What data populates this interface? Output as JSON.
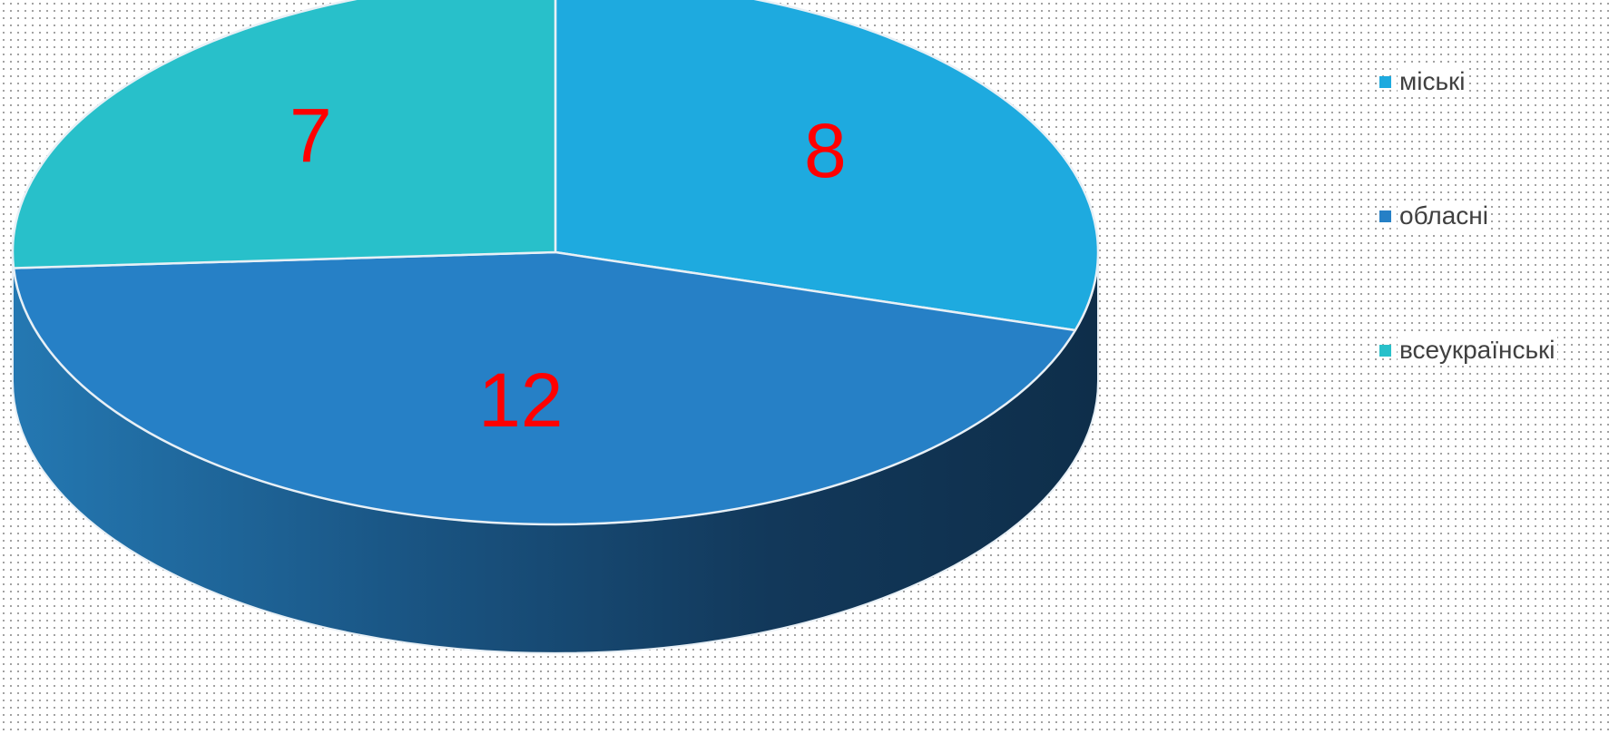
{
  "chart_data": {
    "type": "pie",
    "style": "3d",
    "categories": [
      "міські",
      "обласні",
      "всеукраїнські"
    ],
    "values": [
      8,
      12,
      7
    ],
    "colors": [
      "#1EAADF",
      "#2680C6",
      "#28C0CA"
    ],
    "side_color": "#16466F",
    "label_color": "#FF0000",
    "legend_position": "right",
    "title": ""
  }
}
